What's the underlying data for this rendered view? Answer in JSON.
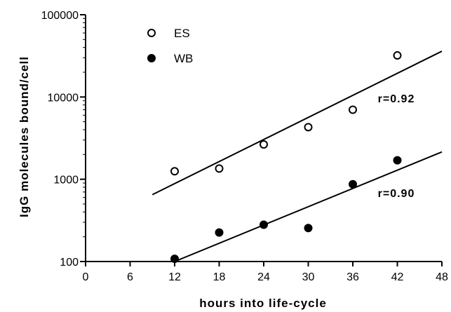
{
  "chart_data": {
    "type": "scatter",
    "title": "",
    "xlabel": "hours into life-cycle",
    "ylabel": "IgG molecules bound/cell",
    "xlim": [
      0,
      48
    ],
    "ylim": [
      100,
      100000
    ],
    "yscale": "log",
    "x_ticks": [
      "0",
      "6",
      "12",
      "18",
      "24",
      "30",
      "36",
      "42",
      "48"
    ],
    "x_tick_values": [
      0,
      6,
      12,
      18,
      24,
      30,
      36,
      42,
      48
    ],
    "y_ticks": [
      "100",
      "1000",
      "10000",
      "100000"
    ],
    "y_tick_values": [
      100,
      1000,
      10000,
      100000
    ],
    "grid": false,
    "legend_position": "top-left",
    "series": [
      {
        "name": "ES",
        "marker": "open-circle",
        "x": [
          12,
          18,
          24,
          30,
          36,
          42
        ],
        "y": [
          1250,
          1350,
          2650,
          4300,
          7000,
          32000
        ],
        "fit_line": {
          "x": [
            9,
            48
          ],
          "y": [
            650,
            36000
          ]
        },
        "annotation": "r=0.92"
      },
      {
        "name": "WB",
        "marker": "filled-circle",
        "x": [
          12,
          18,
          24,
          30,
          36,
          42
        ],
        "y": [
          108,
          225,
          280,
          255,
          870,
          1700
        ],
        "fit_line": {
          "x": [
            12,
            48
          ],
          "y": [
            100,
            2150
          ]
        },
        "annotation": "r=0.90"
      }
    ]
  }
}
